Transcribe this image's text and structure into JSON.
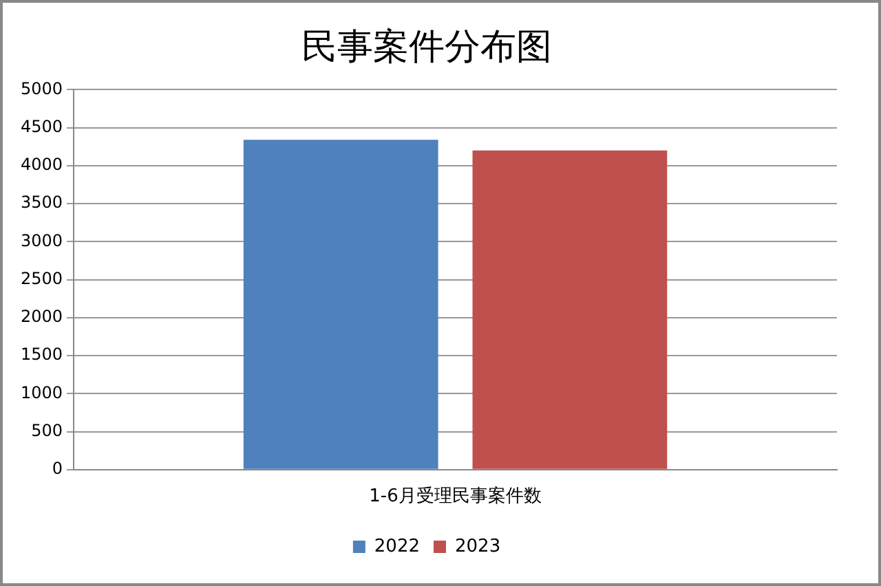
{
  "chart_data": {
    "type": "bar",
    "title": "民事案件分布图",
    "categories": [
      "1-6月受理民事案件数"
    ],
    "series": [
      {
        "name": "2022",
        "color": "#4f81bd",
        "values": [
          4340
        ]
      },
      {
        "name": "2023",
        "color": "#c0504d",
        "values": [
          4200
        ]
      }
    ],
    "ylim": [
      0,
      5000
    ],
    "yticks": [
      0,
      500,
      1000,
      1500,
      2000,
      2500,
      3000,
      3500,
      4000,
      4500,
      5000
    ],
    "grid": "y",
    "legend": "bottom"
  }
}
